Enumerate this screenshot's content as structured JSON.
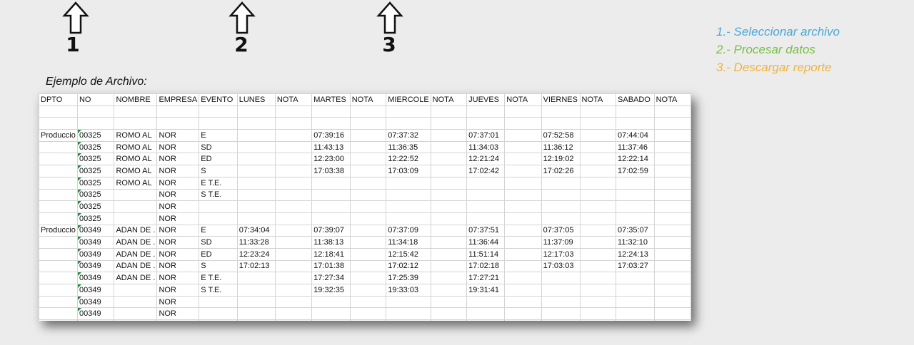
{
  "steps": [
    {
      "num": "1"
    },
    {
      "num": "2"
    },
    {
      "num": "3"
    }
  ],
  "legend": {
    "item1": "1.- Seleccionar archivo",
    "item2": "2.- Procesar datos",
    "item3": "3.- Descargar reporte",
    "color1": "#4aa8d8",
    "color2": "#78c043",
    "color3": "#f0b43c"
  },
  "example_label": "Ejemplo de Archivo:",
  "sheet": {
    "headers": [
      "DPTO",
      "NO",
      "NOMBRE",
      "EMPRESA",
      "EVENTO",
      "LUNES",
      "NOTA",
      "MARTES",
      "NOTA",
      "MIERCOLE",
      "NOTA",
      "JUEVES",
      "NOTA",
      "VIERNES",
      "NOTA",
      "SABADO",
      "NOTA"
    ],
    "rows": [
      [
        "",
        "",
        "",
        "",
        "",
        "",
        "",
        "",
        "",
        "",
        "",
        "",
        "",
        "",
        "",
        "",
        ""
      ],
      [
        "",
        "",
        "",
        "",
        "",
        "",
        "",
        "",
        "",
        "",
        "",
        "",
        "",
        "",
        "",
        "",
        ""
      ],
      [
        "Produccio",
        "00325",
        " ROMO AL",
        "NOR",
        "E",
        "",
        "",
        "07:39:16",
        "",
        "07:37:32",
        "",
        "07:37:01",
        "",
        "07:52:58",
        "",
        "07:44:04",
        ""
      ],
      [
        "",
        "00325",
        " ROMO AL",
        "NOR",
        "SD",
        "",
        "",
        "11:43:13",
        "",
        "11:36:35",
        "",
        "11:34:03",
        "",
        "11:36:12",
        "",
        "11:37:46",
        ""
      ],
      [
        "",
        "00325",
        " ROMO AL",
        "NOR",
        "ED",
        "",
        "",
        "12:23:00",
        "",
        "12:22:52",
        "",
        "12:21:24",
        "",
        "12:19:02",
        "",
        "12:22:14",
        ""
      ],
      [
        "",
        "00325",
        " ROMO AL",
        "NOR",
        "S",
        "",
        "",
        "17:03:38",
        "",
        "17:03:09",
        "",
        "17:02:42",
        "",
        "17:02:26",
        "",
        "17:02:59",
        ""
      ],
      [
        "",
        "00325",
        " ROMO AL",
        "NOR",
        "E T.E.",
        "",
        "",
        "",
        "",
        "",
        "",
        "",
        "",
        "",
        "",
        "",
        ""
      ],
      [
        "",
        "00325",
        "",
        "NOR",
        "S T.E.",
        "",
        "",
        "",
        "",
        "",
        "",
        "",
        "",
        "",
        "",
        "",
        ""
      ],
      [
        "",
        "00325",
        "",
        "NOR",
        "",
        "",
        "",
        "",
        "",
        "",
        "",
        "",
        "",
        "",
        "",
        "",
        ""
      ],
      [
        "",
        "00325",
        "",
        "NOR",
        "",
        "",
        "",
        "",
        "",
        "",
        "",
        "",
        "",
        "",
        "",
        "",
        ""
      ],
      [
        "Produccio",
        "00349",
        "ADAN DE .",
        "NOR",
        "E",
        "07:34:04",
        "",
        "07:39:07",
        "",
        "07:37:09",
        "",
        "07:37:51",
        "",
        "07:37:05",
        "",
        "07:35:07",
        ""
      ],
      [
        "",
        "00349",
        "ADAN DE .",
        "NOR",
        "SD",
        "11:33:28",
        "",
        "11:38:13",
        "",
        "11:34:18",
        "",
        "11:36:44",
        "",
        "11:37:09",
        "",
        "11:32:10",
        ""
      ],
      [
        "",
        "00349",
        "ADAN DE .",
        "NOR",
        "ED",
        "12:23:24",
        "",
        "12:18:41",
        "",
        "12:15:42",
        "",
        "11:51:14",
        "",
        "12:17:03",
        "",
        "12:24:13",
        ""
      ],
      [
        "",
        "00349",
        "ADAN DE .",
        "NOR",
        "S",
        "17:02:13",
        "",
        "17:01:38",
        "",
        "17:02:12",
        "",
        "17:02:18",
        "",
        "17:03:03",
        "",
        "17:03:27",
        ""
      ],
      [
        "",
        "00349",
        "ADAN DE .",
        "NOR",
        "E T.E.",
        "",
        "",
        "17:27:34",
        "",
        "17:25:39",
        "",
        "17:27:21",
        "",
        "",
        "",
        "",
        ""
      ],
      [
        "",
        "00349",
        "",
        "NOR",
        "S T.E.",
        "",
        "",
        "19:32:35",
        "",
        "19:33:03",
        "",
        "19:31:41",
        "",
        "",
        "",
        "",
        ""
      ],
      [
        "",
        "00349",
        "",
        "NOR",
        "",
        "",
        "",
        "",
        "",
        "",
        "",
        "",
        "",
        "",
        "",
        "",
        ""
      ],
      [
        "",
        "00349",
        "",
        "NOR",
        "",
        "",
        "",
        "",
        "",
        "",
        "",
        "",
        "",
        "",
        "",
        "",
        ""
      ],
      [
        "",
        "",
        "",
        "",
        "",
        "",
        "",
        "",
        "",
        "",
        "",
        "",
        "",
        "",
        "",
        "",
        ""
      ]
    ]
  }
}
